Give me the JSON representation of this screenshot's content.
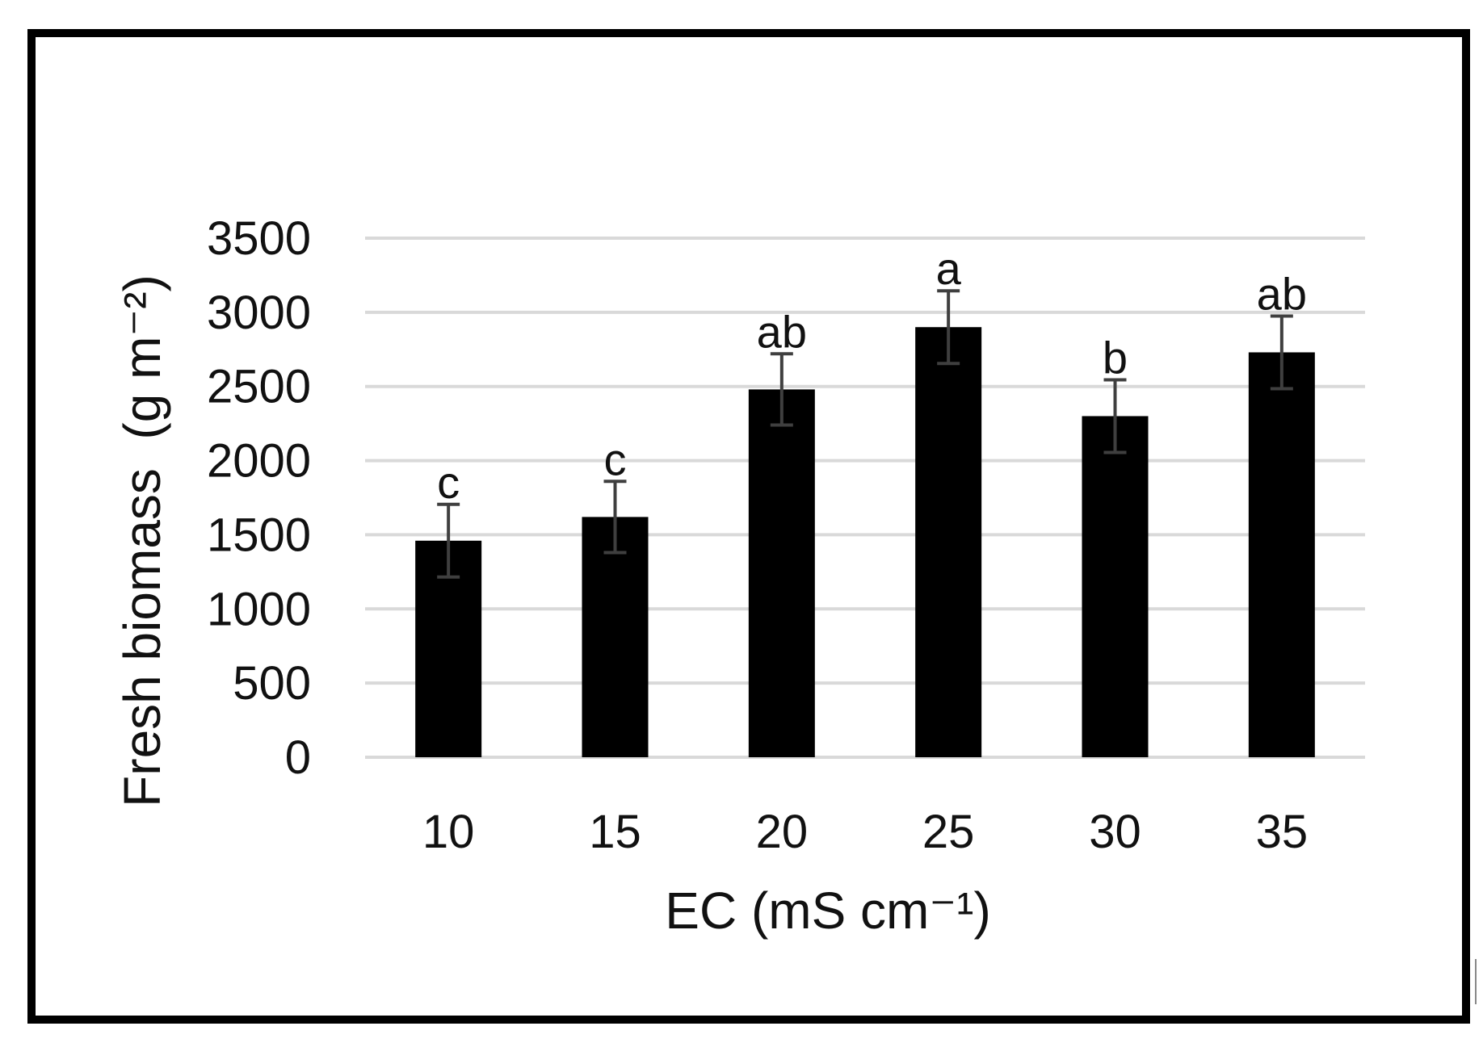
{
  "chart_data": {
    "type": "bar",
    "categories": [
      "10",
      "15",
      "20",
      "25",
      "30",
      "35"
    ],
    "values": [
      1460,
      1620,
      2480,
      2900,
      2300,
      2730
    ],
    "errors": [
      245,
      240,
      240,
      245,
      245,
      245
    ],
    "letters": [
      "c",
      "c",
      "ab",
      "a",
      "b",
      "ab"
    ],
    "xlabel": "EC (mS cm⁻¹)",
    "ylabel": "Fresh biomass  (g m⁻²)",
    "ylim": [
      0,
      3500
    ],
    "yticks": [
      0,
      500,
      1000,
      1500,
      2000,
      2500,
      3000,
      3500
    ],
    "grid": true,
    "colors": {
      "bar": "#000000",
      "error": "#3f3f3f",
      "grid": "#d9d9d9"
    }
  }
}
